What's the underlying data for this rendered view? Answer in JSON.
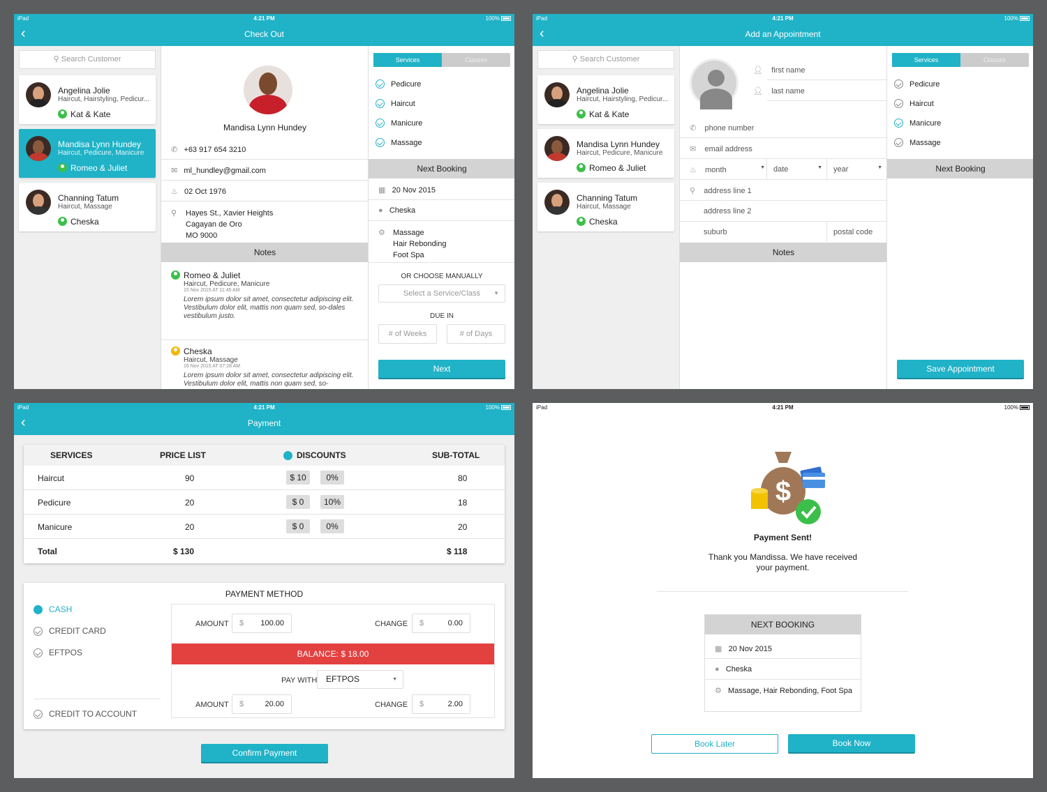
{
  "status": {
    "carrier": "iPad",
    "time": "4:21 PM",
    "battery": "100%"
  },
  "checkout": {
    "title": "Check Out",
    "search_placeholder": "Search Customer",
    "customers": [
      {
        "name": "Angelina Jolie",
        "services": "Haircut, Hairstyling, Pedicur...",
        "staff": "Kat & Kate"
      },
      {
        "name": "Mandisa Lynn Hundey",
        "services": "Haircut, Pedicure, Manicure",
        "staff": "Romeo & Juliet"
      },
      {
        "name": "Channing Tatum",
        "services": "Haircut, Massage",
        "staff": "Cheska"
      }
    ],
    "profile_name": "Mandisa Lynn Hundey",
    "phone": "+63 917 654 3210",
    "email": "ml_hundley@gmail.com",
    "dob": "02 Oct 1976",
    "address": [
      "Hayes St., Xavier Heights",
      "Cagayan de Oro",
      "MO 9000"
    ],
    "notes_title": "Notes",
    "notes": [
      {
        "staff": "Romeo & Juliet",
        "services": "Haircut, Pedicure, Manicure",
        "date": "15 Nov 2015 AT 11:45 AM",
        "text": "Lorem ipsum dolor sit amet, consectetur adipiscing elit. Vestibulum dolor elit, mattis non quam sed, so-dales vestibulum justo."
      },
      {
        "staff": "Cheska",
        "services": "Haircut, Massage",
        "date": "16 Nov 2015 AT 07:28 AM",
        "text": "Lorem ipsum dolor sit amet, consectetur adipiscing elit. Vestibulum dolor elit, mattis non quam sed, so-"
      }
    ],
    "tabs": [
      "Services",
      "Classes"
    ],
    "services": [
      "Pedicure",
      "Haircut",
      "Manicure",
      "Massage"
    ],
    "next_booking_title": "Next Booking",
    "booking_date": "20 Nov 2015",
    "booking_staff": "Cheska",
    "booking_services": [
      "Massage",
      "Hair Rebonding",
      "Foot Spa"
    ],
    "or_choose": "OR CHOOSE MANUALLY",
    "select_placeholder": "Select a Service/Class",
    "due_in": "DUE IN",
    "weeks": "# of Weeks",
    "days": "# of Days",
    "next_btn": "Next"
  },
  "appointment": {
    "title": "Add an Appointment",
    "first_name": "first name",
    "last_name": "last name",
    "phone": "phone number",
    "email": "email address",
    "month": "month",
    "date": "date",
    "year": "year",
    "addr1": "address line 1",
    "addr2": "address line 2",
    "suburb": "suburb",
    "postal": "postal code",
    "notes_title": "Notes",
    "next_booking_title": "Next Booking",
    "save_btn": "Save Appointment"
  },
  "payment": {
    "title": "Payment",
    "headers": [
      "SERVICES",
      "PRICE LIST",
      "DISCOUNTS",
      "SUB-TOTAL"
    ],
    "rows": [
      {
        "service": "Haircut",
        "price": "90",
        "disc_amt": "$ 10",
        "disc_pct": "0%",
        "subtotal": "80"
      },
      {
        "service": "Pedicure",
        "price": "20",
        "disc_amt": "$ 0",
        "disc_pct": "10%",
        "subtotal": "18"
      },
      {
        "service": "Manicure",
        "price": "20",
        "disc_amt": "$ 0",
        "disc_pct": "0%",
        "subtotal": "20"
      }
    ],
    "total_label": "Total",
    "total_price": "$ 130",
    "total_sub": "$ 118",
    "method_title": "PAYMENT METHOD",
    "methods": [
      "CASH",
      "CREDIT CARD",
      "EFTPOS"
    ],
    "credit_account": "CREDIT TO ACCOUNT",
    "amount_label": "AMOUNT",
    "change_label": "CHANGE",
    "currency": "$",
    "amount1": "100.00",
    "change1": "0.00",
    "balance": "BALANCE: $ 18.00",
    "pay_with": "PAY WITH",
    "pay_with_value": "EFTPOS",
    "amount2": "20.00",
    "change2": "2.00",
    "confirm_btn": "Confirm Payment",
    "colors": {
      "accent": "#20b2c7",
      "balance": "#e34040"
    }
  },
  "sent": {
    "title": "Payment Sent!",
    "message1": "Thank you Mandissa. We have received",
    "message2": "your payment.",
    "next_booking": "NEXT BOOKING",
    "date": "20 Nov 2015",
    "staff": "Cheska",
    "services": "Massage, Hair Rebonding, Foot Spa",
    "book_later": "Book Later",
    "book_now": "Book Now"
  }
}
